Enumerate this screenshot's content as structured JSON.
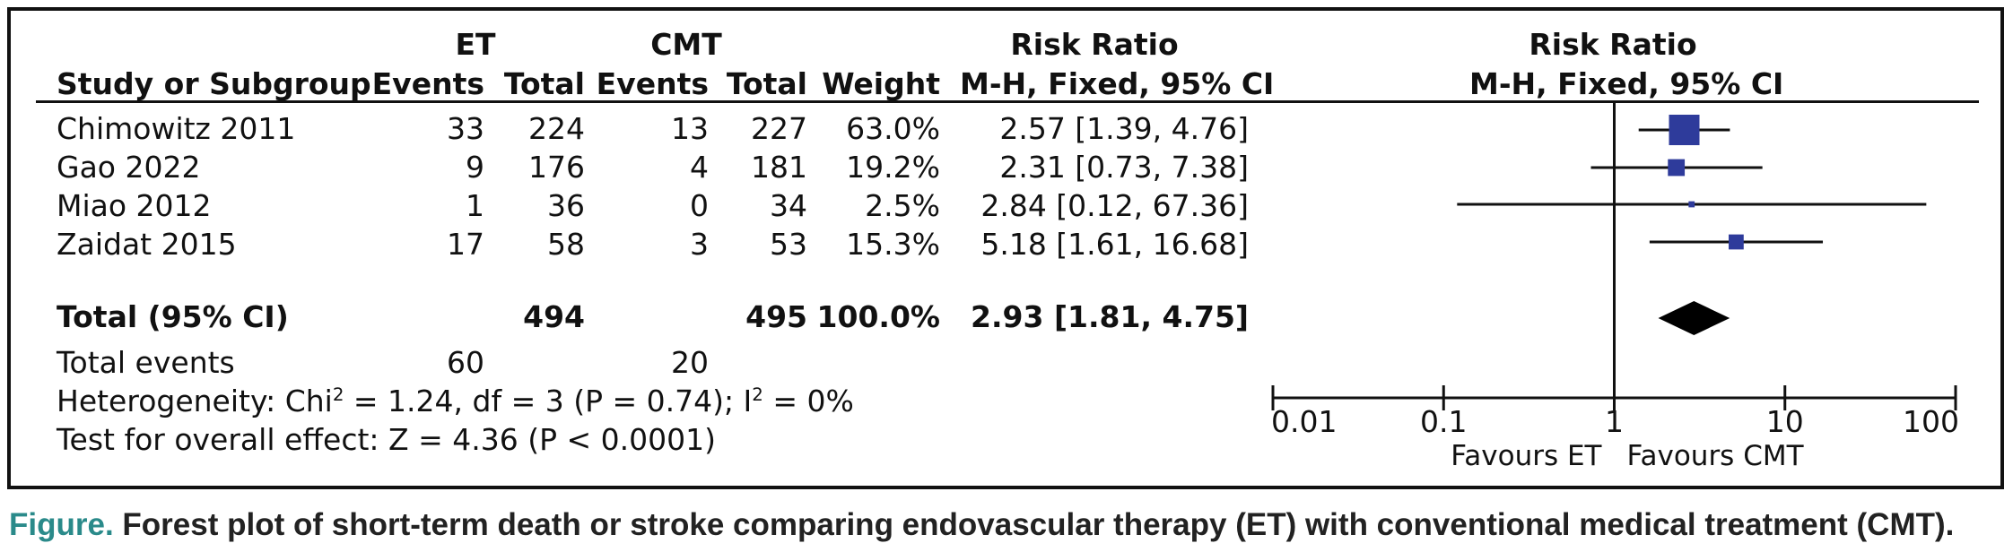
{
  "header": {
    "group_et": "ET",
    "group_cmt": "CMT",
    "study_col": "Study or Subgroup",
    "events": "Events",
    "total": "Total",
    "weight": "Weight",
    "rr_title": "Risk Ratio",
    "rr_method": "M-H, Fixed, 95% CI",
    "plot_title": "Risk Ratio",
    "plot_method": "M-H, Fixed, 95% CI"
  },
  "studies": [
    {
      "name": "Chimowitz 2011",
      "et_events": "33",
      "et_total": "224",
      "cmt_events": "13",
      "cmt_total": "227",
      "weight": "63.0%",
      "rr_text": "2.57 [1.39, 4.76]"
    },
    {
      "name": "Gao 2022",
      "et_events": "9",
      "et_total": "176",
      "cmt_events": "4",
      "cmt_total": "181",
      "weight": "19.2%",
      "rr_text": "2.31 [0.73, 7.38]"
    },
    {
      "name": "Miao 2012",
      "et_events": "1",
      "et_total": "36",
      "cmt_events": "0",
      "cmt_total": "34",
      "weight": "2.5%",
      "rr_text": "2.84 [0.12, 67.36]"
    },
    {
      "name": "Zaidat 2015",
      "et_events": "17",
      "et_total": "58",
      "cmt_events": "3",
      "cmt_total": "53",
      "weight": "15.3%",
      "rr_text": "5.18 [1.61, 16.68]"
    }
  ],
  "total": {
    "label": "Total (95% CI)",
    "et_total": "494",
    "cmt_total": "495",
    "weight": "100.0%",
    "rr_text": "2.93 [1.81, 4.75]"
  },
  "total_events": {
    "label": "Total events",
    "et": "60",
    "cmt": "20"
  },
  "heterogeneity": {
    "prefix": "Heterogeneity: Chi",
    "sup1": "2",
    "mid": " = 1.24, df = 3 (P = 0.74); I",
    "sup2": "2",
    "suffix": " = 0%"
  },
  "overall_effect": "Test for overall effect: Z = 4.36 (P < 0.0001)",
  "axis": {
    "favours_left": "Favours ET",
    "favours_right": "Favours CMT"
  },
  "caption": {
    "label": "Figure.",
    "text": " Forest plot of short-term death or stroke comparing endovascular therapy (ET) with conventional medical treatment (CMT)."
  },
  "colors": {
    "marker": "#2e3b9b",
    "line": "#111111"
  },
  "chart_data": {
    "type": "forest",
    "x_scale": "log",
    "xlim": [
      0.01,
      100
    ],
    "ticks": [
      0.01,
      0.1,
      1,
      10,
      100
    ],
    "tick_labels": [
      "0.01",
      "0.1",
      "1",
      "10",
      "100"
    ],
    "studies": [
      {
        "name": "Chimowitz 2011",
        "rr": 2.57,
        "lo": 1.39,
        "hi": 4.76,
        "weight": 63.0
      },
      {
        "name": "Gao 2022",
        "rr": 2.31,
        "lo": 0.73,
        "hi": 7.38,
        "weight": 19.2
      },
      {
        "name": "Miao 2012",
        "rr": 2.84,
        "lo": 0.12,
        "hi": 67.36,
        "weight": 2.5
      },
      {
        "name": "Zaidat 2015",
        "rr": 5.18,
        "lo": 1.61,
        "hi": 16.68,
        "weight": 15.3
      }
    ],
    "pooled": {
      "rr": 2.93,
      "lo": 1.81,
      "hi": 4.75
    }
  }
}
